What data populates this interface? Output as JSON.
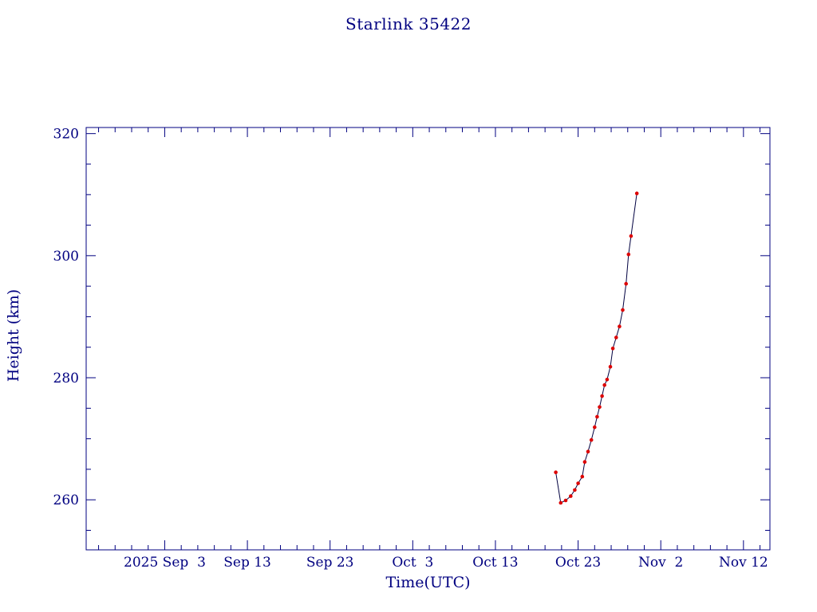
{
  "page": {
    "background": "#ffffff"
  },
  "chart_data": {
    "type": "line",
    "title": "Starlink 35422",
    "xlabel": "Time(UTC)",
    "ylabel": "Height (km)",
    "grid": false,
    "legend": null,
    "x_axis": {
      "tick_labels": [
        "2025 Sep  3",
        "Sep 13",
        "Sep 23",
        "Oct  3",
        "Oct 13",
        "Oct 23",
        "Nov  2",
        "Nov 12"
      ],
      "tick_days_since_2025_sep_03": [
        0,
        10,
        20,
        30,
        40,
        50,
        60,
        70
      ],
      "minor_tick_step_days": 2,
      "domain_days_since_2025_sep_03": [
        -9.5,
        73.2
      ]
    },
    "y_axis": {
      "tick_values": [
        260,
        280,
        300,
        320
      ],
      "minor_tick_step": 5,
      "domain": [
        251.8,
        321.0
      ]
    },
    "colors": {
      "axis": "#000080",
      "text": "#000080",
      "line": "#000040",
      "marker": "#dd0000"
    },
    "series": [
      {
        "name": "Height (km)",
        "marker": "dot",
        "x_days_since_2025_sep_03": [
          47.3,
          47.9,
          48.5,
          49.1,
          49.6,
          50.0,
          50.5,
          50.8,
          51.2,
          51.6,
          52.0,
          52.3,
          52.6,
          52.9,
          53.2,
          53.5,
          53.9,
          54.2,
          54.6,
          55.0,
          55.4,
          55.8,
          56.1,
          56.4,
          57.1
        ],
        "height_km": [
          264.5,
          259.5,
          259.9,
          260.6,
          261.6,
          262.7,
          263.8,
          266.2,
          267.9,
          269.8,
          271.9,
          273.6,
          275.2,
          277.0,
          278.8,
          279.7,
          281.8,
          284.8,
          286.6,
          288.4,
          291.1,
          295.4,
          300.2,
          303.2,
          310.2
        ]
      }
    ]
  }
}
